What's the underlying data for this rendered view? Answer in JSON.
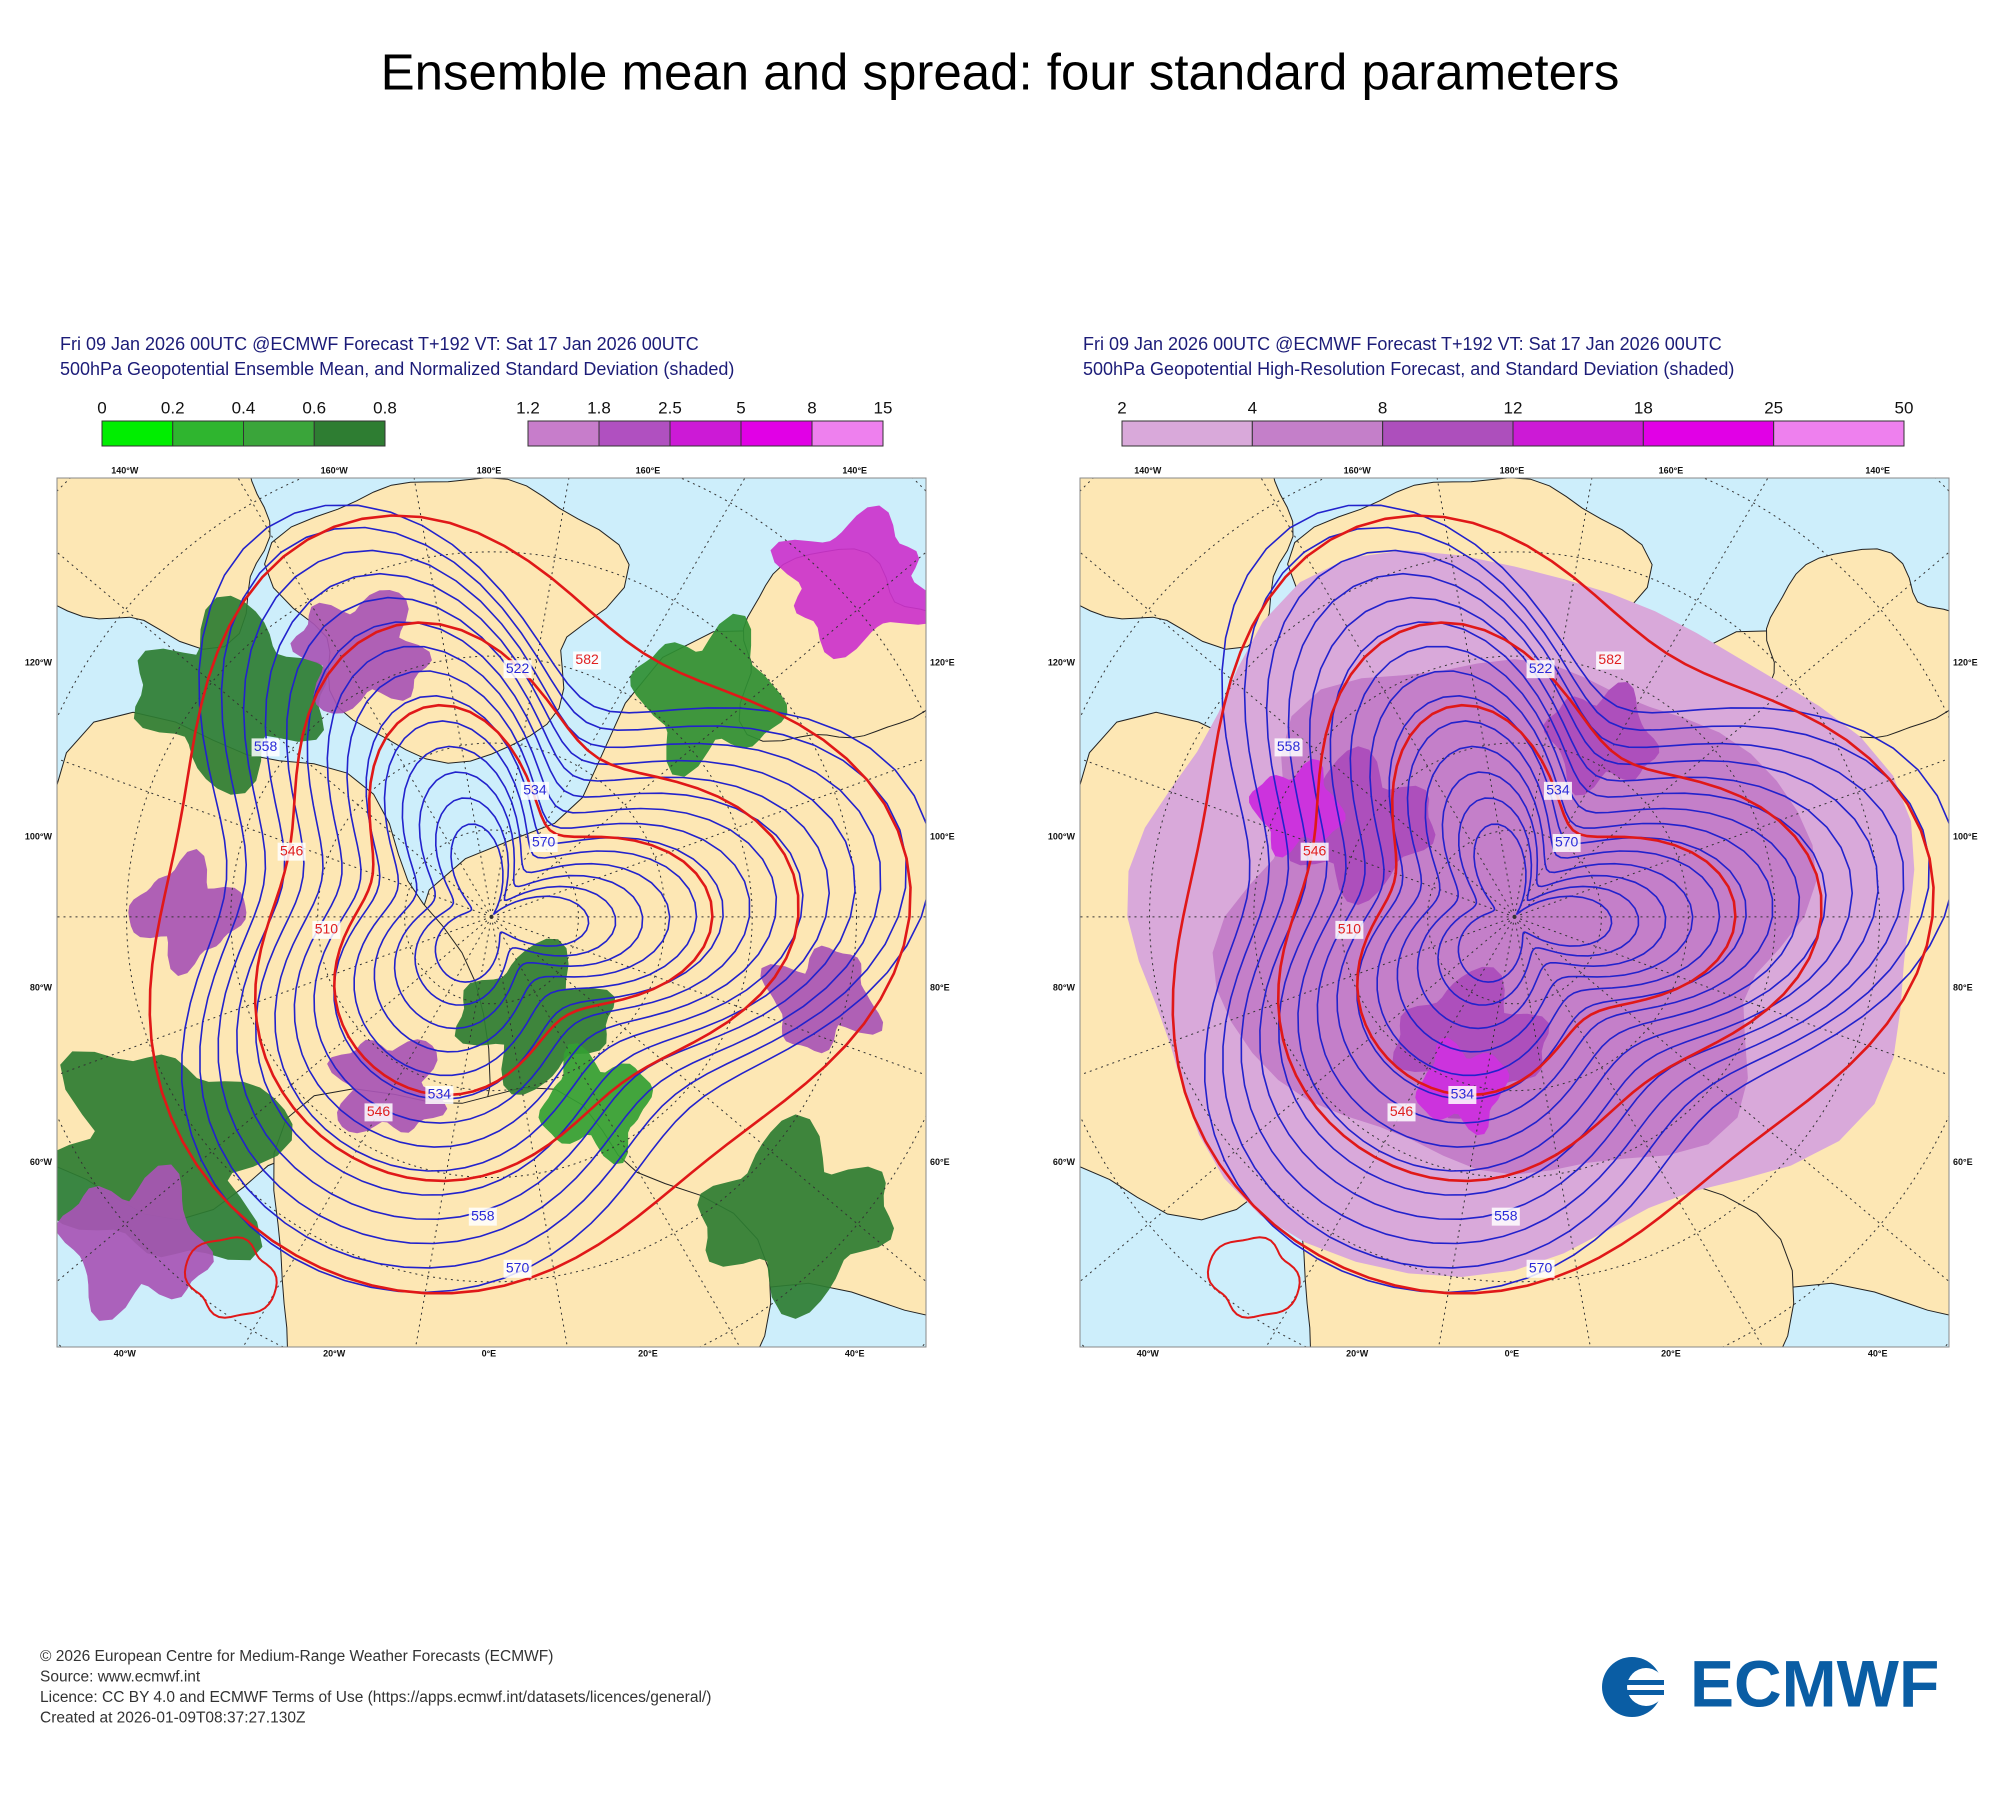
{
  "title": "Ensemble mean and spread: four standard parameters",
  "panels": [
    {
      "header": [
        "Fri 09 Jan 2026 00UTC @ECMWF Forecast T+192 VT: Sat 17 Jan 2026 00UTC",
        "500hPa Geopotential Ensemble Mean, and Normalized Standard Deviation (shaded)"
      ],
      "colorbars": [
        {
          "labels": [
            "0",
            "0.2",
            "0.4",
            "0.6",
            "0.8"
          ],
          "colors": [
            "#00ee00",
            "#2fb52f",
            "#3aa53a",
            "#2e7d32"
          ]
        },
        {
          "labels": [
            "1.2",
            "1.8",
            "2.5",
            "5",
            "8",
            "15"
          ],
          "colors": [
            "#c77dcb",
            "#b050c0",
            "#cc1ad6",
            "#e100e6",
            "#ee80ee"
          ]
        }
      ],
      "lon_top": [
        "140°W",
        "160°W",
        "180°E",
        "160°E",
        "140°E"
      ],
      "lon_bottom": [
        "40°W",
        "20°W",
        "0°E",
        "20°E",
        "40°E"
      ],
      "lon_left": [
        "120°W",
        "100°W",
        "80°W",
        "60°W"
      ],
      "lon_right": [
        "120°E",
        "100°E",
        "80°E",
        "60°E"
      ],
      "contour_labels": [
        "558",
        "570",
        "522",
        "534",
        "546",
        "582",
        "510",
        "546",
        "534",
        "558",
        "570"
      ]
    },
    {
      "header": [
        "Fri 09 Jan 2026 00UTC @ECMWF Forecast T+192 VT: Sat 17 Jan 2026 00UTC",
        "500hPa Geopotential High-Resolution Forecast, and Standard Deviation (shaded)"
      ],
      "colorbars": [
        {
          "labels": [
            "2",
            "4",
            "8",
            "12",
            "18",
            "25",
            "50"
          ],
          "colors": [
            "#d9a9da",
            "#c47fc9",
            "#ad4fbc",
            "#cc1ad6",
            "#e100e6",
            "#ee80ee"
          ]
        }
      ],
      "lon_top": [
        "140°W",
        "160°W",
        "180°E",
        "160°E",
        "140°E"
      ],
      "lon_bottom": [
        "40°W",
        "20°W",
        "0°E",
        "20°E",
        "40°E"
      ],
      "lon_left": [
        "120°W",
        "100°W",
        "80°W",
        "60°W"
      ],
      "lon_right": [
        "120°E",
        "100°E",
        "80°E",
        "60°E"
      ],
      "contour_labels": [
        "558",
        "570",
        "522",
        "534",
        "546",
        "582",
        "510",
        "546",
        "534",
        "558",
        "570"
      ]
    }
  ],
  "footer": [
    "© 2026 European Centre for Medium-Range Weather Forecasts (ECMWF)",
    "Source: www.ecmwf.int",
    "Licence: CC BY 4.0 and ECMWF Terms of Use (https://apps.ecmwf.int/datasets/licences/general/)",
    "Created at 2026-01-09T08:37:27.130Z"
  ],
  "logo": "ECMWF"
}
